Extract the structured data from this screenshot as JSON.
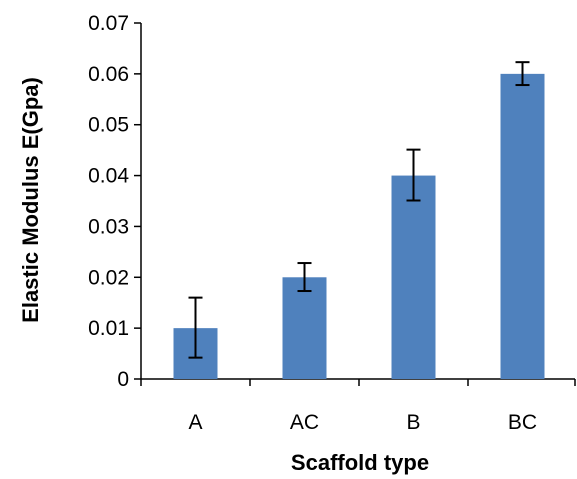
{
  "chart_data": {
    "type": "bar",
    "title": "",
    "xlabel": "Scaffold type",
    "ylabel": "Elastic Modulus E(Gpa)",
    "categories": [
      "A",
      "AC",
      "B",
      "BC"
    ],
    "values": [
      0.01,
      0.02,
      0.04,
      0.06
    ],
    "error_low": [
      0.0042,
      0.0173,
      0.0351,
      0.0578
    ],
    "error_high": [
      0.016,
      0.0228,
      0.0451,
      0.0623
    ],
    "ylim": [
      0,
      0.07
    ],
    "yticks": [
      "0",
      "0.01",
      "0.02",
      "0.03",
      "0.04",
      "0.05",
      "0.06",
      "0.07"
    ],
    "ytick_values": [
      0,
      0.01,
      0.02,
      0.03,
      0.04,
      0.05,
      0.06,
      0.07
    ],
    "grid": false,
    "legend": "none",
    "bar_color": "#4f81bd"
  }
}
